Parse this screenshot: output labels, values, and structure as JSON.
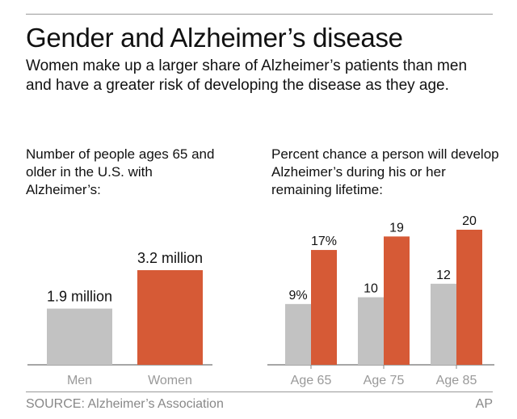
{
  "title": "Gender and Alzheimer’s disease",
  "subtitle": "Women make up a larger share of Alzheimer’s patients than men and have a greater risk of developing the disease as they age.",
  "source": "SOURCE: Alzheimer’s Association",
  "credit": "AP",
  "colors": {
    "men": "#c2c2c2",
    "women": "#d65a36",
    "axis": "#888888"
  },
  "chart_data": [
    {
      "type": "bar",
      "title": "Number of people ages 65 and older in the U.S. with Alzheimer’s:",
      "categories": [
        "Men",
        "Women"
      ],
      "values": [
        1.9,
        3.2
      ],
      "data_labels": [
        "1.9 million",
        "3.2 million"
      ],
      "unit": "million",
      "grid": false
    },
    {
      "type": "bar",
      "title": "Percent chance a person will develop Alzheimer’s during his or her remaining lifetime:",
      "categories": [
        "Age 65",
        "Age 75",
        "Age 85"
      ],
      "series": [
        {
          "values": [
            9,
            10,
            12
          ],
          "data_labels": [
            "9%",
            "10",
            "12"
          ]
        },
        {
          "values": [
            17,
            19,
            20
          ],
          "data_labels": [
            "17%",
            "19",
            "20"
          ]
        }
      ],
      "grid": false
    }
  ]
}
